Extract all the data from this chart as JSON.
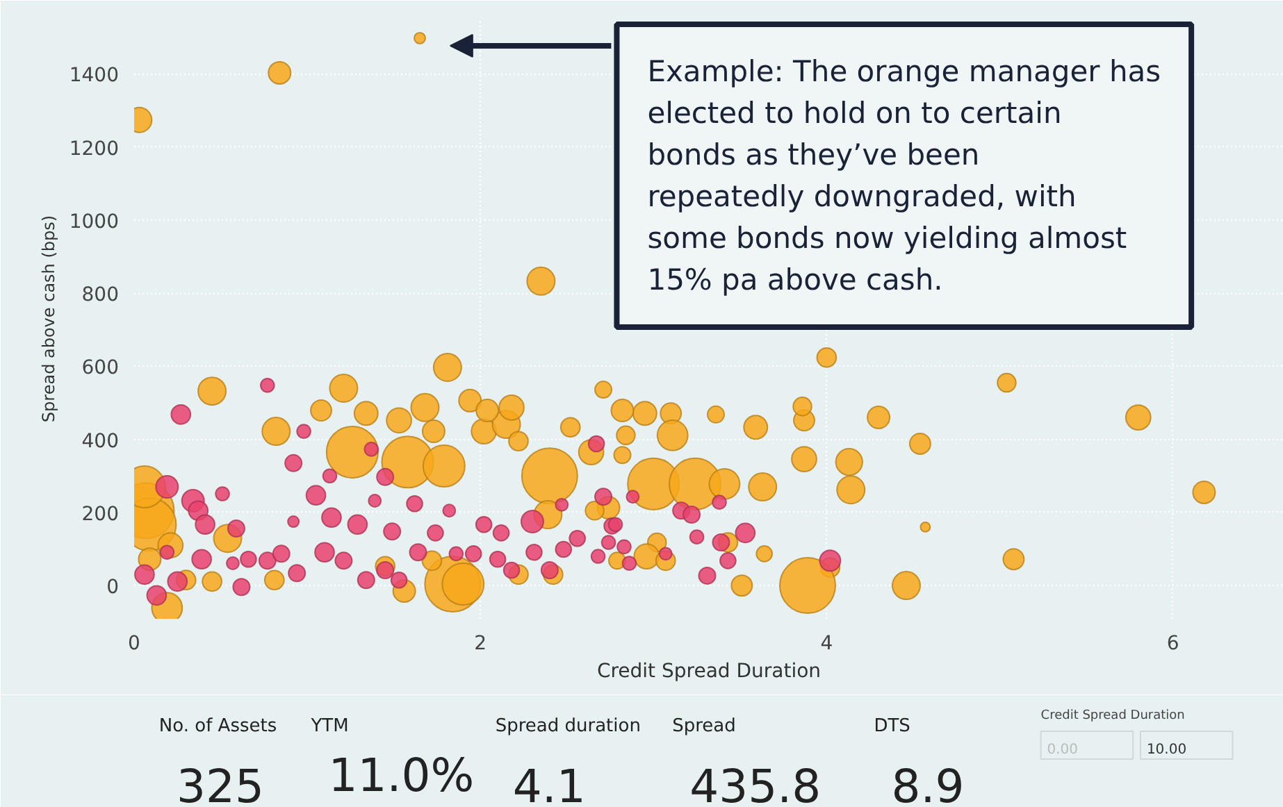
{
  "chart_data": [
    {
      "type": "bubble",
      "xlabel": "Credit Spread Duration",
      "ylabel": "Spread above cash (bps)",
      "xlim": [
        0,
        6.64
      ],
      "ylim": [
        -91,
        1551
      ],
      "xticks": [
        0,
        2,
        4,
        6
      ],
      "yticks": [
        0,
        200,
        400,
        600,
        800,
        1000,
        1200,
        1400
      ],
      "grid": true,
      "annotations": [
        "Example: The orange manager has elected to hold on to certain bonds as they’ve been repeatedly downgraded, with some bonds now yielding almost 15% pa above cash."
      ],
      "series": [
        {
          "color": "#f7a81b",
          "x": [
            1.65,
            0.84,
            0.03,
            2.35,
            1.81,
            4.0,
            5.04,
            5.8,
            6.18,
            4.3,
            4.54,
            3.87,
            4.14,
            4.13,
            3.87,
            3.86,
            3.63,
            3.59,
            4.57,
            5.08,
            4.02,
            4.46,
            3.89,
            3.51,
            3.64,
            3.0,
            3.24,
            3.41,
            3.1,
            3.36,
            3.11,
            2.95,
            2.84,
            2.82,
            0.45,
            0.82,
            1.21,
            1.26,
            1.58,
            1.79,
            1.34,
            1.08,
            1.53,
            1.68,
            1.73,
            1.94,
            2.02,
            2.15,
            2.18,
            2.22,
            2.04,
            2.4,
            2.52,
            2.71,
            2.82,
            2.64,
            2.39,
            2.74,
            2.66,
            0.07,
            0.09,
            0.06,
            0.54,
            0.21,
            0.09,
            0.19,
            0.3,
            0.45,
            0.81,
            1.84,
            1.9,
            1.56,
            1.72,
            1.45,
            2.42,
            2.22,
            3.02,
            2.96,
            3.07,
            2.79,
            3.43
          ],
          "values": [
            1498,
            1403,
            1274,
            833,
            597,
            624,
            555,
            460,
            255,
            460,
            388,
            346,
            262,
            338,
            452,
            490,
            270,
            433,
            160,
            72,
            49,
            0,
            0,
            0,
            87,
            278,
            278,
            278,
            471,
            468,
            411,
            471,
            411,
            357,
            532,
            422,
            540,
            365,
            338,
            327,
            471,
            479,
            452,
            487,
            422,
            506,
            422,
            441,
            487,
            395,
            479,
            300,
            433,
            536,
            479,
            365,
            194,
            213,
            205,
            205,
            167,
            270,
            129,
            110,
            72,
            -61,
            15,
            11,
            15,
            4,
            4,
            -15,
            68,
            53,
            30,
            30,
            118,
            80,
            68,
            68,
            118
          ],
          "sizes": [
            0.04,
            0.16,
            0.2,
            0.25,
            0.25,
            0.12,
            0.11,
            0.2,
            0.16,
            0.16,
            0.14,
            0.2,
            0.25,
            0.23,
            0.14,
            0.11,
            0.25,
            0.18,
            0.03,
            0.14,
            0.12,
            0.25,
            1,
            0.14,
            0.08,
            0.86,
            0.86,
            0.3,
            0.14,
            0.09,
            0.3,
            0.18,
            0.11,
            0.09,
            0.25,
            0.25,
            0.25,
            0.86,
            0.86,
            0.56,
            0.18,
            0.14,
            0.2,
            0.25,
            0.16,
            0.16,
            0.2,
            0.25,
            0.2,
            0.12,
            0.16,
            1,
            0.12,
            0.09,
            0.16,
            0.2,
            0.25,
            0.16,
            0.11,
            1,
            0.9,
            0.56,
            0.25,
            0.2,
            0.16,
            0.3,
            0.12,
            0.12,
            0.12,
            1,
            0.56,
            0.16,
            0.12,
            0.12,
            0.12,
            0.12,
            0.11,
            0.2,
            0.12,
            0.09,
            0.12
          ]
        },
        {
          "color": "#e8426f",
          "x": [
            0.27,
            0.77,
            0.19,
            0.34,
            0.37,
            0.41,
            0.51,
            0.59,
            0.19,
            0.06,
            0.13,
            0.25,
            0.39,
            0.57,
            0.62,
            0.66,
            0.77,
            0.85,
            0.94,
            0.98,
            0.92,
            0.92,
            1.05,
            1.1,
            1.13,
            1.14,
            1.21,
            1.29,
            1.34,
            1.37,
            1.39,
            1.45,
            1.49,
            1.45,
            1.53,
            1.62,
            1.64,
            1.74,
            1.82,
            1.86,
            1.96,
            2.02,
            2.12,
            2.18,
            2.1,
            2.3,
            2.31,
            2.4,
            2.47,
            2.48,
            2.56,
            2.67,
            2.71,
            2.76,
            2.74,
            2.68,
            2.88,
            2.86,
            3.16,
            3.22,
            3.38,
            3.25,
            3.39,
            3.53,
            3.43,
            3.31,
            4.02,
            2.83,
            2.78,
            3.07
          ],
          "values": [
            468,
            548,
            270,
            232,
            205,
            167,
            251,
            156,
            91,
            30,
            -27,
            11,
            72,
            61,
            -4,
            72,
            68,
            87,
            34,
            422,
            335,
            175,
            247,
            91,
            300,
            186,
            68,
            167,
            15,
            373,
            232,
            297,
            148,
            42,
            15,
            224,
            91,
            144,
            205,
            87,
            87,
            167,
            144,
            42,
            72,
            175,
            91,
            42,
            221,
            99,
            129,
            388,
            243,
            163,
            118,
            80,
            243,
            61,
            205,
            194,
            228,
            133,
            118,
            144,
            68,
            27,
            68,
            106,
            167,
            87
          ],
          "sizes": [
            0.12,
            0.06,
            0.16,
            0.16,
            0.12,
            0.12,
            0.06,
            0.09,
            0.06,
            0.12,
            0.12,
            0.12,
            0.12,
            0.05,
            0.09,
            0.08,
            0.09,
            0.09,
            0.09,
            0.06,
            0.09,
            0.04,
            0.12,
            0.12,
            0.06,
            0.12,
            0.09,
            0.12,
            0.09,
            0.06,
            0.05,
            0.09,
            0.09,
            0.09,
            0.08,
            0.08,
            0.09,
            0.08,
            0.05,
            0.06,
            0.08,
            0.08,
            0.08,
            0.08,
            0.08,
            0.16,
            0.08,
            0.09,
            0.05,
            0.08,
            0.08,
            0.08,
            0.09,
            0.08,
            0.06,
            0.06,
            0.05,
            0.06,
            0.09,
            0.09,
            0.06,
            0.06,
            0.09,
            0.12,
            0.08,
            0.09,
            0.14,
            0.06,
            0.06,
            0.05
          ]
        }
      ]
    },
    {
      "type": "other",
      "categories": [
        "No. of Assets",
        "YTM",
        "Spread duration",
        "Spread",
        "DTS"
      ],
      "value_labels": [
        "325",
        "11.0%",
        "4.1",
        "435.8",
        "8.9"
      ],
      "annotations": [
        "Credit Spread Duration",
        "0.00",
        "10.00"
      ]
    }
  ]
}
